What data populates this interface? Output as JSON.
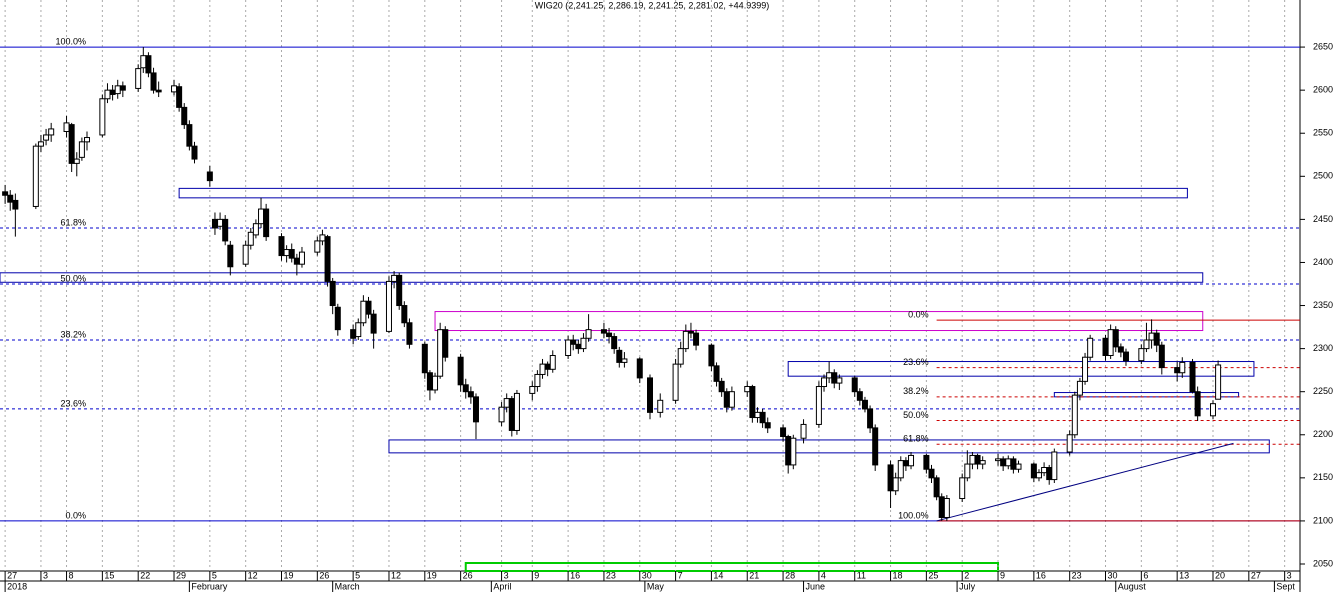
{
  "chart_data": {
    "type": "candlestick",
    "title": "WIG20 (2,241.25, 2,286.19, 2,241.25, 2,281.02, +44.9399)",
    "x": [
      "2017-12-27",
      "2017-12-28",
      "2017-12-29",
      "2018-01-02",
      "2018-01-03",
      "2018-01-04",
      "2018-01-05",
      "2018-01-08",
      "2018-01-09",
      "2018-01-10",
      "2018-01-11",
      "2018-01-12",
      "2018-01-15",
      "2018-01-16",
      "2018-01-17",
      "2018-01-18",
      "2018-01-19",
      "2018-01-22",
      "2018-01-23",
      "2018-01-24",
      "2018-01-25",
      "2018-01-26",
      "2018-01-29",
      "2018-01-30",
      "2018-01-31",
      "2018-02-01",
      "2018-02-02",
      "2018-02-05",
      "2018-02-06",
      "2018-02-07",
      "2018-02-08",
      "2018-02-09",
      "2018-02-12",
      "2018-02-13",
      "2018-02-14",
      "2018-02-15",
      "2018-02-16",
      "2018-02-19",
      "2018-02-20",
      "2018-02-21",
      "2018-02-22",
      "2018-02-23",
      "2018-02-26",
      "2018-02-27",
      "2018-02-28",
      "2018-03-01",
      "2018-03-02",
      "2018-03-05",
      "2018-03-06",
      "2018-03-07",
      "2018-03-08",
      "2018-03-09",
      "2018-03-12",
      "2018-03-13",
      "2018-03-14",
      "2018-03-15",
      "2018-03-16",
      "2018-03-19",
      "2018-03-20",
      "2018-03-21",
      "2018-03-22",
      "2018-03-23",
      "2018-03-26",
      "2018-03-27",
      "2018-03-28",
      "2018-03-29",
      "2018-04-03",
      "2018-04-04",
      "2018-04-05",
      "2018-04-06",
      "2018-04-09",
      "2018-04-10",
      "2018-04-11",
      "2018-04-12",
      "2018-04-13",
      "2018-04-16",
      "2018-04-17",
      "2018-04-18",
      "2018-04-19",
      "2018-04-20",
      "2018-04-23",
      "2018-04-24",
      "2018-04-25",
      "2018-04-26",
      "2018-04-27",
      "2018-04-30",
      "2018-05-02",
      "2018-05-04",
      "2018-05-07",
      "2018-05-08",
      "2018-05-09",
      "2018-05-10",
      "2018-05-11",
      "2018-05-14",
      "2018-05-15",
      "2018-05-16",
      "2018-05-17",
      "2018-05-18",
      "2018-05-21",
      "2018-05-22",
      "2018-05-23",
      "2018-05-24",
      "2018-05-25",
      "2018-05-28",
      "2018-05-29",
      "2018-05-30",
      "2018-06-01",
      "2018-06-04",
      "2018-06-05",
      "2018-06-06",
      "2018-06-07",
      "2018-06-08",
      "2018-06-11",
      "2018-06-12",
      "2018-06-13",
      "2018-06-14",
      "2018-06-15",
      "2018-06-18",
      "2018-06-19",
      "2018-06-20",
      "2018-06-21",
      "2018-06-22",
      "2018-06-25",
      "2018-06-26",
      "2018-06-27",
      "2018-06-28",
      "2018-06-29",
      "2018-07-02",
      "2018-07-03",
      "2018-07-04",
      "2018-07-05",
      "2018-07-06",
      "2018-07-09",
      "2018-07-10",
      "2018-07-11",
      "2018-07-12",
      "2018-07-13",
      "2018-07-16",
      "2018-07-17",
      "2018-07-18",
      "2018-07-19",
      "2018-07-20",
      "2018-07-23",
      "2018-07-24",
      "2018-07-25",
      "2018-07-26",
      "2018-07-27",
      "2018-07-30",
      "2018-07-31",
      "2018-08-01",
      "2018-08-02",
      "2018-08-03",
      "2018-08-06",
      "2018-08-07",
      "2018-08-08",
      "2018-08-09",
      "2018-08-10",
      "2018-08-13",
      "2018-08-14",
      "2018-08-16",
      "2018-08-17",
      "2018-08-20",
      "2018-08-21"
    ],
    "open": [
      2482,
      2478,
      2472,
      2465,
      2535,
      2542,
      2548,
      2552,
      2560,
      2515,
      2522,
      2540,
      2548,
      2590,
      2600,
      2596,
      2605,
      2602,
      2626,
      2640,
      2620,
      2600,
      2598,
      2604,
      2580,
      2560,
      2535,
      2505,
      2450,
      2442,
      2450,
      2420,
      2398,
      2420,
      2432,
      2445,
      2462,
      2430,
      2408,
      2415,
      2405,
      2398,
      2412,
      2425,
      2430,
      2378,
      2348,
      2322,
      2314,
      2330,
      2355,
      2340,
      2320,
      2378,
      2385,
      2350,
      2330,
      2305,
      2272,
      2252,
      2268,
      2322,
      2290,
      2258,
      2250,
      2244,
      2215,
      2232,
      2242,
      2205,
      2248,
      2256,
      2270,
      2282,
      2276,
      2292,
      2310,
      2305,
      2300,
      2312,
      2322,
      2318,
      2314,
      2298,
      2284,
      2288,
      2266,
      2226,
      2240,
      2282,
      2300,
      2320,
      2318,
      2304,
      2280,
      2262,
      2250,
      2232,
      2250,
      2256,
      2220,
      2226,
      2214,
      2208,
      2198,
      2165,
      2196,
      2212,
      2256,
      2266,
      2272,
      2260,
      2266,
      2250,
      2240,
      2230,
      2208,
      2165,
      2135,
      2150,
      2170,
      2164,
      2176,
      2160,
      2150,
      2128,
      2104,
      2126,
      2150,
      2166,
      2176,
      2166,
      2170,
      2172,
      2164,
      2172,
      2160,
      2166,
      2150,
      2156,
      2162,
      2148,
      2180,
      2200,
      2246,
      2262,
      2290,
      2312,
      2292,
      2322,
      2302,
      2296,
      2286,
      2300,
      2310,
      2318,
      2304,
      2278,
      2272,
      2284,
      2250,
      2222,
      2241.25
    ],
    "high": [
      2490,
      2484,
      2480,
      2538,
      2548,
      2555,
      2562,
      2570,
      2562,
      2528,
      2545,
      2552,
      2595,
      2608,
      2606,
      2612,
      2610,
      2630,
      2650,
      2644,
      2626,
      2610,
      2612,
      2608,
      2585,
      2565,
      2540,
      2512,
      2458,
      2458,
      2455,
      2425,
      2425,
      2440,
      2450,
      2475,
      2468,
      2434,
      2420,
      2422,
      2410,
      2418,
      2430,
      2438,
      2432,
      2382,
      2352,
      2328,
      2335,
      2362,
      2360,
      2345,
      2384,
      2390,
      2388,
      2355,
      2335,
      2308,
      2275,
      2272,
      2330,
      2326,
      2294,
      2265,
      2256,
      2248,
      2238,
      2248,
      2245,
      2252,
      2262,
      2275,
      2288,
      2285,
      2298,
      2315,
      2316,
      2310,
      2318,
      2340,
      2330,
      2324,
      2318,
      2302,
      2296,
      2290,
      2270,
      2248,
      2288,
      2308,
      2328,
      2330,
      2322,
      2306,
      2284,
      2266,
      2254,
      2256,
      2262,
      2258,
      2232,
      2230,
      2220,
      2212,
      2200,
      2200,
      2218,
      2262,
      2270,
      2285,
      2276,
      2270,
      2268,
      2254,
      2244,
      2234,
      2212,
      2170,
      2156,
      2175,
      2174,
      2180,
      2178,
      2165,
      2153,
      2132,
      2130,
      2155,
      2182,
      2180,
      2178,
      2175,
      2178,
      2175,
      2176,
      2175,
      2170,
      2168,
      2160,
      2168,
      2165,
      2184,
      2205,
      2250,
      2266,
      2295,
      2316,
      2316,
      2328,
      2326,
      2306,
      2300,
      2305,
      2330,
      2334,
      2322,
      2308,
      2285,
      2290,
      2288,
      2256,
      2240,
      2286.19
    ],
    "low": [
      2468,
      2460,
      2430,
      2462,
      2528,
      2536,
      2540,
      2545,
      2505,
      2500,
      2518,
      2530,
      2545,
      2585,
      2588,
      2590,
      2592,
      2598,
      2620,
      2615,
      2596,
      2592,
      2594,
      2575,
      2555,
      2530,
      2515,
      2488,
      2432,
      2438,
      2420,
      2385,
      2395,
      2415,
      2428,
      2440,
      2425,
      2402,
      2400,
      2400,
      2385,
      2394,
      2408,
      2420,
      2372,
      2340,
      2315,
      2305,
      2310,
      2326,
      2335,
      2300,
      2318,
      2370,
      2345,
      2325,
      2300,
      2265,
      2240,
      2248,
      2265,
      2285,
      2250,
      2242,
      2236,
      2195,
      2210,
      2226,
      2198,
      2200,
      2240,
      2250,
      2265,
      2268,
      2272,
      2288,
      2298,
      2294,
      2296,
      2308,
      2312,
      2306,
      2294,
      2278,
      2278,
      2260,
      2218,
      2220,
      2236,
      2278,
      2296,
      2312,
      2298,
      2274,
      2256,
      2244,
      2226,
      2228,
      2244,
      2214,
      2214,
      2208,
      2202,
      2192,
      2155,
      2160,
      2190,
      2208,
      2250,
      2260,
      2254,
      2252,
      2244,
      2234,
      2226,
      2202,
      2158,
      2115,
      2130,
      2146,
      2158,
      2160,
      2155,
      2144,
      2124,
      2100,
      2100,
      2122,
      2146,
      2160,
      2160,
      2160,
      2164,
      2158,
      2160,
      2155,
      2156,
      2145,
      2146,
      2152,
      2142,
      2144,
      2176,
      2196,
      2240,
      2258,
      2286,
      2286,
      2288,
      2296,
      2290,
      2280,
      2282,
      2296,
      2300,
      2296,
      2270,
      2262,
      2266,
      2248,
      2216,
      2218,
      2241.25
    ],
    "close": [
      2478,
      2470,
      2462,
      2535,
      2540,
      2548,
      2555,
      2562,
      2515,
      2520,
      2540,
      2545,
      2590,
      2600,
      2595,
      2605,
      2600,
      2625,
      2640,
      2620,
      2600,
      2598,
      2605,
      2580,
      2560,
      2535,
      2520,
      2495,
      2440,
      2450,
      2425,
      2395,
      2420,
      2435,
      2445,
      2462,
      2430,
      2408,
      2415,
      2405,
      2398,
      2412,
      2425,
      2432,
      2378,
      2350,
      2322,
      2312,
      2330,
      2355,
      2340,
      2318,
      2378,
      2385,
      2350,
      2330,
      2305,
      2272,
      2252,
      2268,
      2322,
      2290,
      2258,
      2250,
      2244,
      2215,
      2232,
      2242,
      2205,
      2248,
      2256,
      2270,
      2282,
      2276,
      2292,
      2310,
      2305,
      2300,
      2312,
      2322,
      2318,
      2314,
      2300,
      2284,
      2288,
      2266,
      2226,
      2240,
      2282,
      2300,
      2320,
      2318,
      2304,
      2280,
      2262,
      2250,
      2232,
      2250,
      2256,
      2220,
      2226,
      2214,
      2208,
      2198,
      2165,
      2196,
      2212,
      2256,
      2266,
      2272,
      2260,
      2266,
      2250,
      2240,
      2230,
      2208,
      2165,
      2135,
      2150,
      2170,
      2164,
      2176,
      2160,
      2150,
      2128,
      2104,
      2126,
      2150,
      2166,
      2176,
      2166,
      2170,
      2172,
      2164,
      2172,
      2160,
      2166,
      2150,
      2156,
      2162,
      2148,
      2180,
      2200,
      2246,
      2262,
      2290,
      2312,
      2292,
      2322,
      2302,
      2296,
      2286,
      2300,
      2310,
      2318,
      2304,
      2278,
      2272,
      2284,
      2250,
      2222,
      2236.08,
      2281.02
    ],
    "up_color": "#ffffff",
    "down_color": "#000000",
    "xlim": [
      "2017-12-26",
      "2018-09-06"
    ],
    "xticks": [
      {
        "value": "2017-12-27",
        "label": "27"
      },
      {
        "value": "2018-01-03",
        "label": "3"
      },
      {
        "value": "2018-01-08",
        "label": "8"
      },
      {
        "value": "2018-01-15",
        "label": "15"
      },
      {
        "value": "2018-01-22",
        "label": "22"
      },
      {
        "value": "2018-01-29",
        "label": "29"
      },
      {
        "value": "2018-02-05",
        "label": "5"
      },
      {
        "value": "2018-02-12",
        "label": "12"
      },
      {
        "value": "2018-02-19",
        "label": "19"
      },
      {
        "value": "2018-02-26",
        "label": "26"
      },
      {
        "value": "2018-03-05",
        "label": "5"
      },
      {
        "value": "2018-03-12",
        "label": "12"
      },
      {
        "value": "2018-03-19",
        "label": "19"
      },
      {
        "value": "2018-03-26",
        "label": "26"
      },
      {
        "value": "2018-04-03",
        "label": "3"
      },
      {
        "value": "2018-04-09",
        "label": "9"
      },
      {
        "value": "2018-04-16",
        "label": "16"
      },
      {
        "value": "2018-04-23",
        "label": "23"
      },
      {
        "value": "2018-04-30",
        "label": "30"
      },
      {
        "value": "2018-05-07",
        "label": "7"
      },
      {
        "value": "2018-05-14",
        "label": "14"
      },
      {
        "value": "2018-05-21",
        "label": "21"
      },
      {
        "value": "2018-05-28",
        "label": "28"
      },
      {
        "value": "2018-06-04",
        "label": "4"
      },
      {
        "value": "2018-06-11",
        "label": "11"
      },
      {
        "value": "2018-06-18",
        "label": "18"
      },
      {
        "value": "2018-06-25",
        "label": "25"
      },
      {
        "value": "2018-07-02",
        "label": "2"
      },
      {
        "value": "2018-07-09",
        "label": "9"
      },
      {
        "value": "2018-07-16",
        "label": "16"
      },
      {
        "value": "2018-07-23",
        "label": "23"
      },
      {
        "value": "2018-07-30",
        "label": "30"
      },
      {
        "value": "2018-08-06",
        "label": "6"
      },
      {
        "value": "2018-08-13",
        "label": "13"
      },
      {
        "value": "2018-08-20",
        "label": "20"
      },
      {
        "value": "2018-08-27",
        "label": "27"
      },
      {
        "value": "2018-09-03",
        "label": "3"
      }
    ],
    "month_ticks": [
      {
        "value": "2017-12-27",
        "label": "2018"
      },
      {
        "value": "2018-02-01",
        "label": "February"
      },
      {
        "value": "2018-03-01",
        "label": "March"
      },
      {
        "value": "2018-04-01",
        "label": "April"
      },
      {
        "value": "2018-05-01",
        "label": "May"
      },
      {
        "value": "2018-06-01",
        "label": "June"
      },
      {
        "value": "2018-07-01",
        "label": "July"
      },
      {
        "value": "2018-08-01",
        "label": "August"
      },
      {
        "value": "2018-09-01",
        "label": "Sept"
      }
    ],
    "ylim": [
      2050,
      2700
    ],
    "yticks": [
      2050,
      2100,
      2150,
      2200,
      2250,
      2300,
      2350,
      2400,
      2450,
      2500,
      2550,
      2600,
      2650
    ],
    "grid": true,
    "fib_left": {
      "color": "#0000cc",
      "start": "2017-12-26",
      "levels": [
        {
          "label": "100.0%",
          "value": 2650
        },
        {
          "label": "61.8%",
          "value": 2440
        },
        {
          "label": "50.0%",
          "value": 2375
        },
        {
          "label": "38.2%",
          "value": 2310
        },
        {
          "label": "23.6%",
          "value": 2230
        },
        {
          "label": "0.0%",
          "value": 2100
        }
      ]
    },
    "fib_right": {
      "color": "#cc0000",
      "start": "2018-06-27",
      "levels": [
        {
          "label": "0.0%",
          "value": 2333
        },
        {
          "label": "23.6%",
          "value": 2278
        },
        {
          "label": "38.2%",
          "value": 2244
        },
        {
          "label": "50.0%",
          "value": 2216.5
        },
        {
          "label": "61.8%",
          "value": 2189
        },
        {
          "label": "100.0%",
          "value": 2100
        }
      ]
    },
    "zones": [
      {
        "start": "2018-01-30",
        "end": "2018-08-15",
        "low": 2475,
        "high": 2486,
        "color": "#0000aa"
      },
      {
        "start": "2017-12-26",
        "end": "2018-08-18",
        "low": 2377,
        "high": 2388,
        "color": "#0000aa"
      },
      {
        "start": "2018-03-21",
        "end": "2018-08-18",
        "low": 2321,
        "high": 2343,
        "color": "#cc00cc"
      },
      {
        "start": "2018-05-29",
        "end": "2018-08-28",
        "low": 2268,
        "high": 2285,
        "color": "#0000aa"
      },
      {
        "start": "2018-07-20",
        "end": "2018-08-25",
        "low": 2244,
        "high": 2249,
        "color": "#0000aa"
      },
      {
        "start": "2018-03-12",
        "end": "2018-08-31",
        "low": 2179,
        "high": 2194,
        "color": "#0000aa"
      }
    ],
    "trendline": {
      "color": "#000080",
      "x": [
        "2018-06-27",
        "2018-08-24"
      ],
      "y": [
        2100,
        2190
      ]
    },
    "time_zone": {
      "start": "2018-03-27",
      "end": "2018-07-09",
      "color": "#00cc00"
    }
  }
}
